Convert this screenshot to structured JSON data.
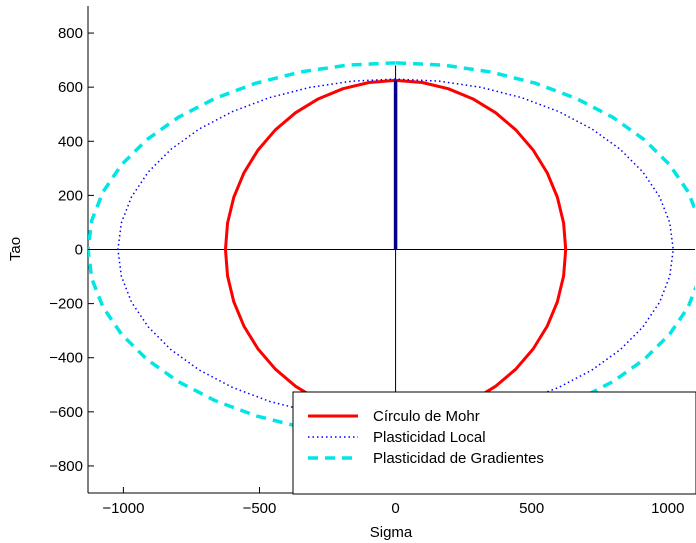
{
  "chart_data": {
    "type": "line",
    "title": "",
    "xlabel": "Sigma",
    "ylabel": "Tao",
    "xlim": [
      -1130,
      1100
    ],
    "ylim": [
      -900,
      900
    ],
    "xticks": [
      -1000,
      -500,
      0,
      500,
      1000
    ],
    "yticks": [
      -800,
      -600,
      -400,
      -200,
      0,
      200,
      400,
      600,
      800
    ],
    "xtick_labels": [
      "−1000",
      "−500",
      "0",
      "500",
      "1000"
    ],
    "ytick_labels": [
      "−800",
      "−600",
      "−400",
      "−200",
      "0",
      "200",
      "400",
      "600",
      "800"
    ],
    "grid": false,
    "legend_position": "bottom-right",
    "series": [
      {
        "name": "Círculo de Mohr",
        "style": "solid",
        "color": "#ff0000",
        "shape": "ellipse",
        "center": [
          0,
          0
        ],
        "semi_axis_x": 625,
        "semi_axis_y": 625
      },
      {
        "name": "Plasticidad Local",
        "style": "dotted",
        "color": "#0000ff",
        "shape": "ellipse",
        "center": [
          0,
          0
        ],
        "semi_axis_x": 1020,
        "semi_axis_y": 630
      },
      {
        "name": "Plasticidad de Gradientes",
        "style": "dashed",
        "color": "#00e5e5",
        "shape": "ellipse",
        "center": [
          0,
          0
        ],
        "semi_axis_x": 1130,
        "semi_axis_y": 690
      }
    ],
    "extra_segments": [
      {
        "description": "vertical stress line",
        "color": "#00008b",
        "x": [
          0,
          0
        ],
        "y": [
          0,
          625
        ]
      }
    ]
  }
}
